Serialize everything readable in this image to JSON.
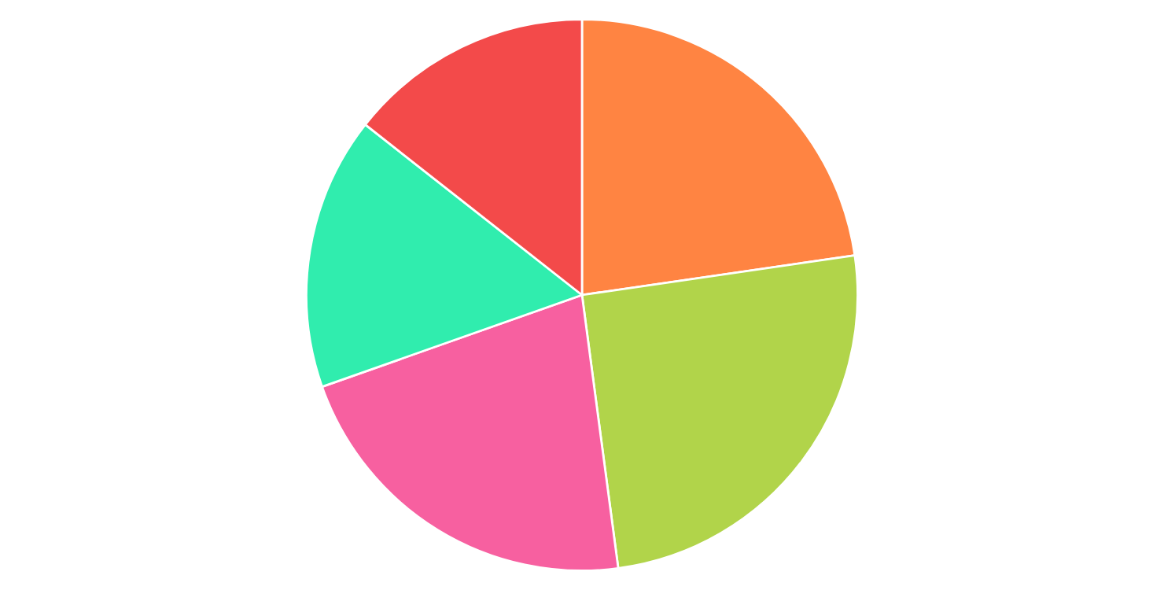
{
  "chart_data": {
    "type": "pie",
    "categories": [
      null,
      null,
      null,
      null,
      null
    ],
    "values": [
      22.7,
      25.2,
      21.7,
      16.0,
      14.4
    ],
    "colors": [
      "#ff8442",
      "#b1d44a",
      "#f760a0",
      "#30edae",
      "#f34a4a"
    ]
  }
}
